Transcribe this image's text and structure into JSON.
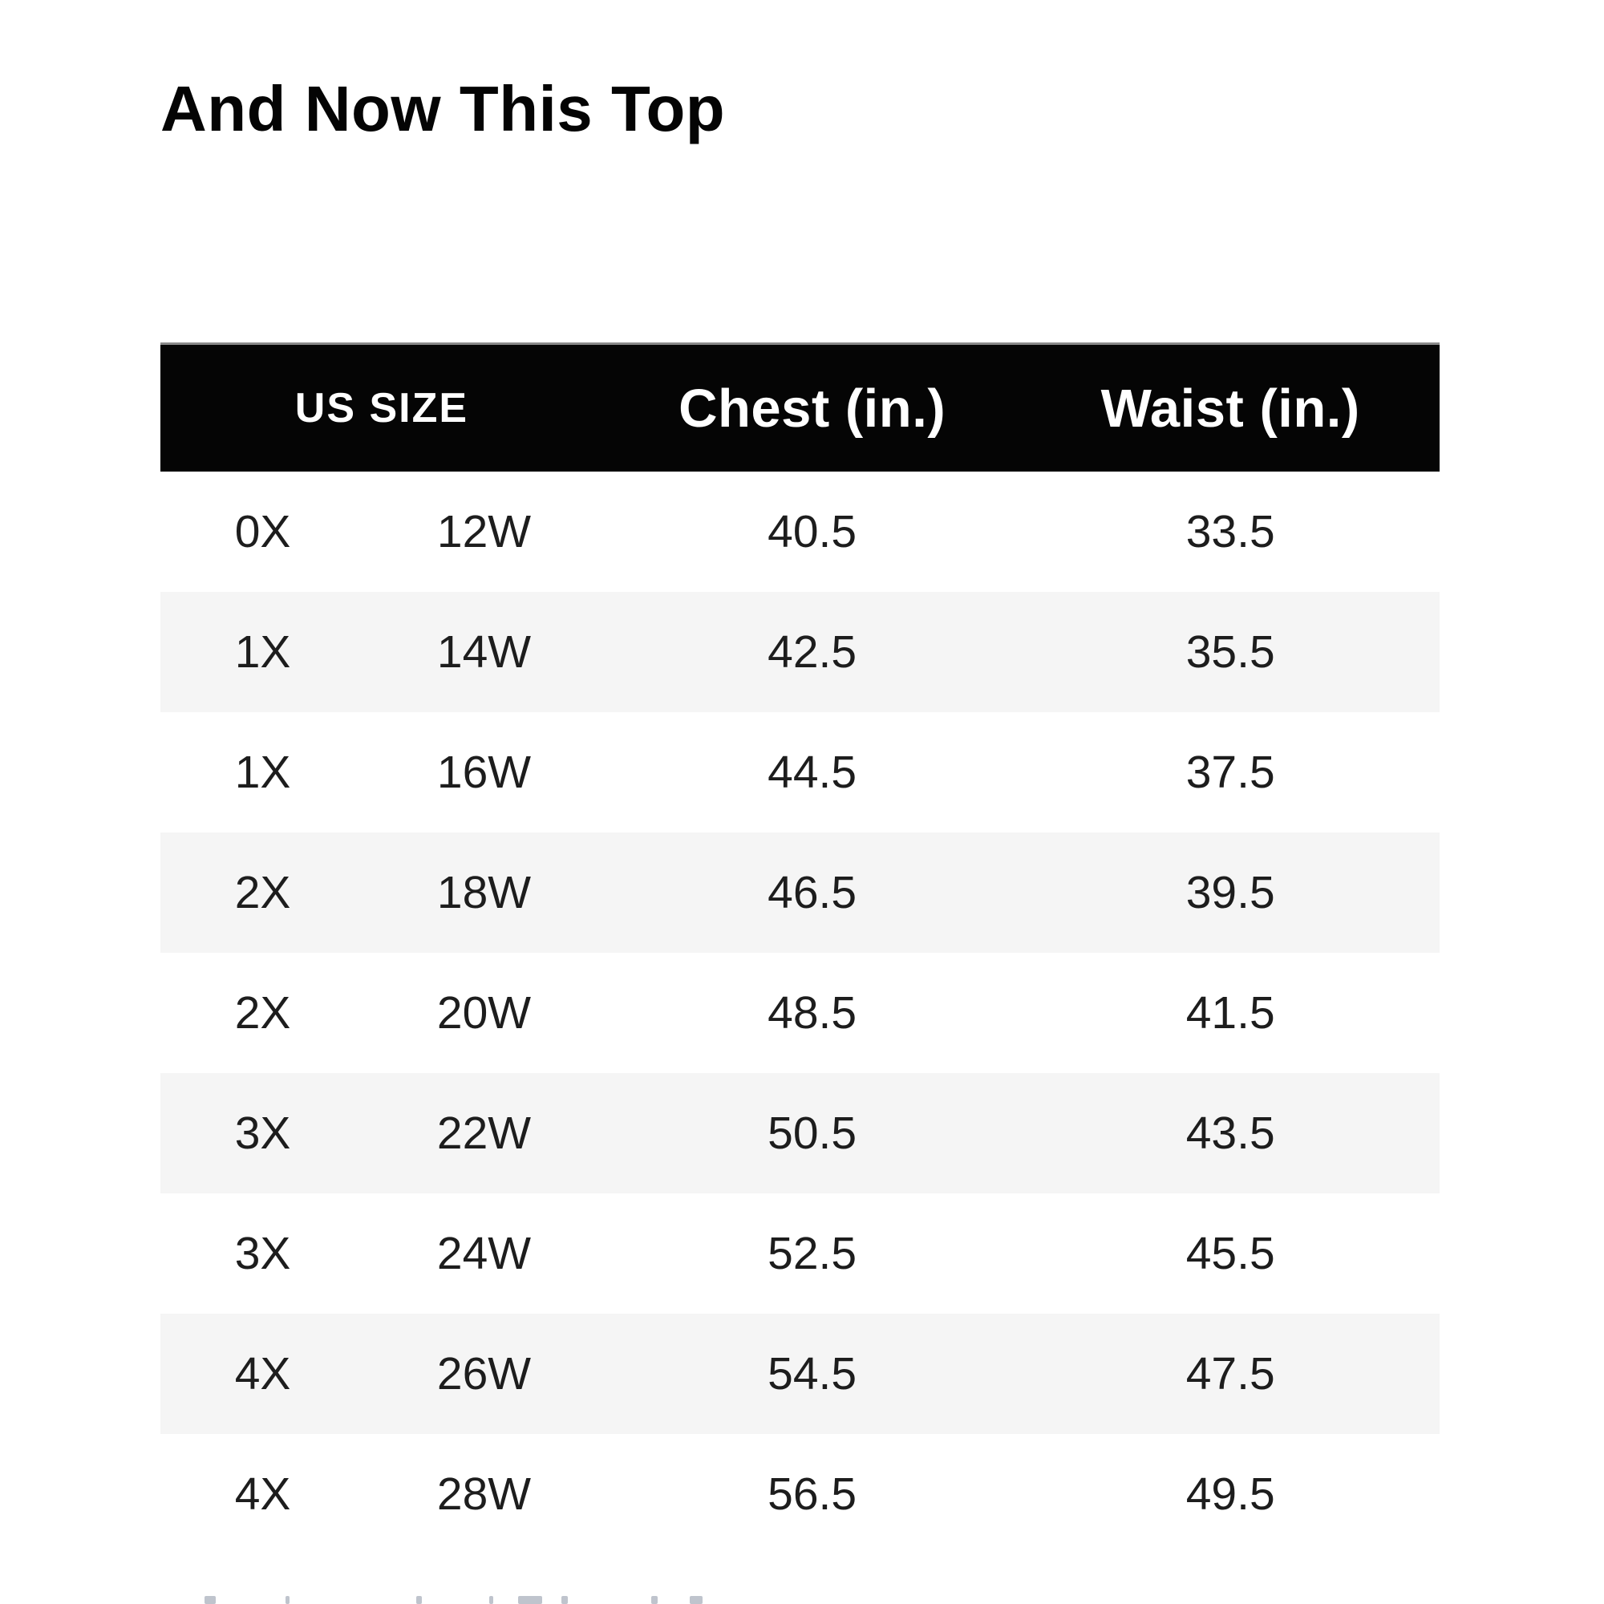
{
  "page": {
    "title": "And Now This Top"
  },
  "table": {
    "header": {
      "us_size": "US SIZE",
      "chest": "Chest (in.)",
      "waist": "Waist (in.)"
    },
    "rows": [
      {
        "size": "0X",
        "w_size": "12W",
        "chest": 40.5,
        "waist": 33.5
      },
      {
        "size": "1X",
        "w_size": "14W",
        "chest": 42.5,
        "waist": 35.5
      },
      {
        "size": "1X",
        "w_size": "16W",
        "chest": 44.5,
        "waist": 37.5
      },
      {
        "size": "2X",
        "w_size": "18W",
        "chest": 46.5,
        "waist": 39.5
      },
      {
        "size": "2X",
        "w_size": "20W",
        "chest": 48.5,
        "waist": 41.5
      },
      {
        "size": "3X",
        "w_size": "22W",
        "chest": 50.5,
        "waist": 43.5
      },
      {
        "size": "3X",
        "w_size": "24W",
        "chest": 52.5,
        "waist": 45.5
      },
      {
        "size": "4X",
        "w_size": "26W",
        "chest": 54.5,
        "waist": 47.5
      },
      {
        "size": "4X",
        "w_size": "28W",
        "chest": 56.5,
        "waist": 49.5
      }
    ]
  },
  "colors": {
    "header_bg": "#050505",
    "header_text": "#ffffff",
    "row_stripe": "#f5f5f5",
    "body_text": "#1d1d1d",
    "title_text": "#040404"
  }
}
